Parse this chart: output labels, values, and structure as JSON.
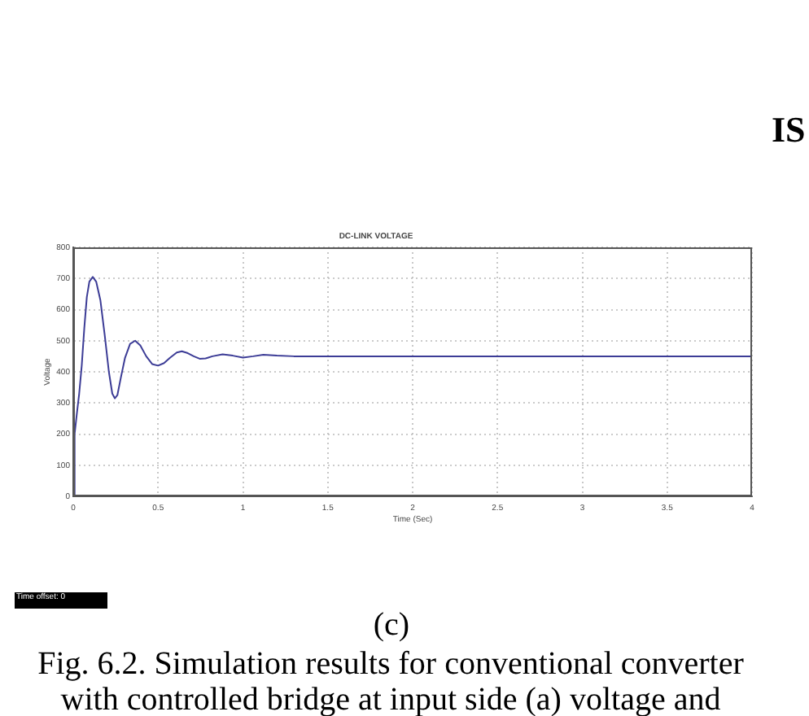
{
  "chart_data": {
    "type": "line",
    "title": "DC-LINK VOLTAGE",
    "xlabel": "Time (Sec)",
    "ylabel": "Voltage",
    "x": [
      0,
      0.008,
      0.02,
      0.035,
      0.05,
      0.065,
      0.08,
      0.095,
      0.115,
      0.135,
      0.16,
      0.185,
      0.21,
      0.23,
      0.245,
      0.26,
      0.28,
      0.305,
      0.335,
      0.365,
      0.395,
      0.43,
      0.465,
      0.5,
      0.535,
      0.57,
      0.61,
      0.64,
      0.675,
      0.71,
      0.745,
      0.78,
      0.82,
      0.88,
      0.94,
      1.0,
      1.06,
      1.12,
      1.2,
      1.3,
      1.5,
      2,
      3,
      4
    ],
    "values": [
      0,
      200,
      260,
      330,
      420,
      540,
      640,
      690,
      705,
      690,
      630,
      520,
      400,
      330,
      315,
      325,
      380,
      445,
      490,
      500,
      485,
      450,
      425,
      420,
      428,
      445,
      462,
      466,
      460,
      450,
      442,
      443,
      450,
      456,
      452,
      446,
      450,
      455,
      452,
      450,
      450,
      450,
      450,
      450
    ],
    "color": "#3c3c96",
    "xlim": [
      0,
      4
    ],
    "xticks": [
      0,
      0.5,
      1,
      1.5,
      2,
      2.5,
      3,
      3.5,
      4
    ],
    "ylim": [
      0,
      800
    ],
    "yticks": [
      0,
      100,
      200,
      300,
      400,
      500,
      600,
      700,
      800
    ],
    "grid": true,
    "marker": "none",
    "line_style": "solid",
    "annotations": [
      "IS",
      "Time offset: 0",
      "(c)",
      "Fig. 6.2. Simulation results for conventional converter with controlled bridge at input side (a) voltage and"
    ]
  }
}
